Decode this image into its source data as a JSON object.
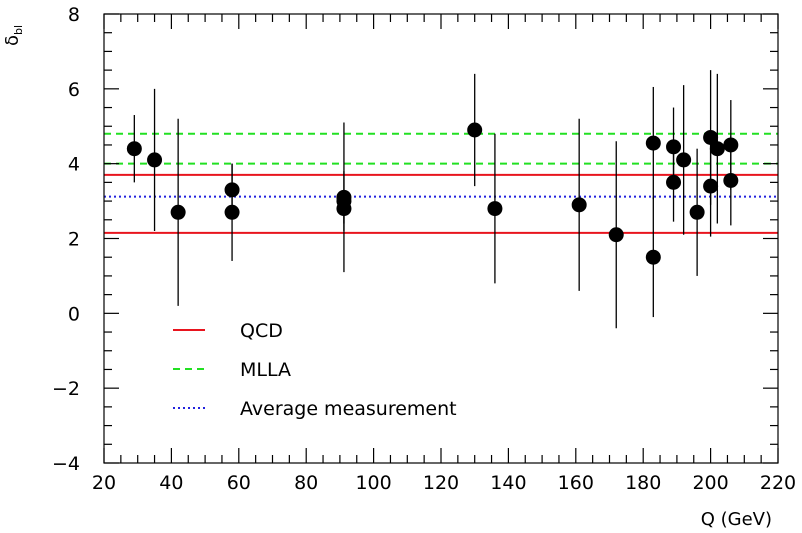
{
  "chart_data": {
    "type": "scatter",
    "ylabel": "δ_bl",
    "xlabel": "Q (GeV)",
    "xlim": [
      20,
      220
    ],
    "ylim": [
      -4,
      8
    ],
    "x_ticks": [
      20,
      40,
      60,
      80,
      100,
      120,
      140,
      160,
      180,
      200,
      220
    ],
    "y_ticks": [
      -4,
      -2,
      0,
      2,
      4,
      6,
      8
    ],
    "grid": false,
    "legend_position": "bottom-left",
    "points": [
      {
        "x": 29,
        "y": 4.4,
        "err": 0.9
      },
      {
        "x": 35,
        "y": 4.1,
        "err": 1.9
      },
      {
        "x": 42,
        "y": 2.7,
        "err": 2.5
      },
      {
        "x": 58,
        "y": 3.3,
        "err": 0.7
      },
      {
        "x": 58,
        "y": 2.7,
        "err": 1.3
      },
      {
        "x": 91.2,
        "y": 3.1,
        "err": 2.0
      },
      {
        "x": 91.2,
        "y": 3.0,
        "err": 0.8
      },
      {
        "x": 91.2,
        "y": 2.8,
        "err": 0.4
      },
      {
        "x": 130,
        "y": 4.9,
        "err": 1.5
      },
      {
        "x": 136,
        "y": 2.8,
        "err": 2.0
      },
      {
        "x": 161,
        "y": 2.9,
        "err": 2.3
      },
      {
        "x": 172,
        "y": 2.1,
        "err": 2.5
      },
      {
        "x": 183,
        "y": 4.55,
        "err": 1.5
      },
      {
        "x": 183,
        "y": 1.5,
        "err": 1.6
      },
      {
        "x": 189,
        "y": 4.45,
        "err": 1.05
      },
      {
        "x": 189,
        "y": 3.5,
        "err": 1.05
      },
      {
        "x": 192,
        "y": 4.1,
        "err": 2.0
      },
      {
        "x": 196,
        "y": 2.7,
        "err": 1.7
      },
      {
        "x": 200,
        "y": 4.7,
        "err": 1.8
      },
      {
        "x": 200,
        "y": 3.4,
        "err": 1.35
      },
      {
        "x": 202,
        "y": 4.4,
        "err": 2.0
      },
      {
        "x": 206,
        "y": 4.5,
        "err": 1.2
      },
      {
        "x": 206,
        "y": 3.55,
        "err": 1.2
      }
    ],
    "lines": [
      {
        "name": "QCD",
        "style": "solid",
        "color": "#e8141e",
        "values": [
          3.7,
          2.15
        ]
      },
      {
        "name": "MLLA",
        "style": "dashed",
        "color": "#22e022",
        "values": [
          4.8,
          4.0
        ]
      },
      {
        "name": "Average measurement",
        "style": "dotted",
        "color": "#2222dd",
        "values": [
          3.12
        ]
      }
    ]
  }
}
